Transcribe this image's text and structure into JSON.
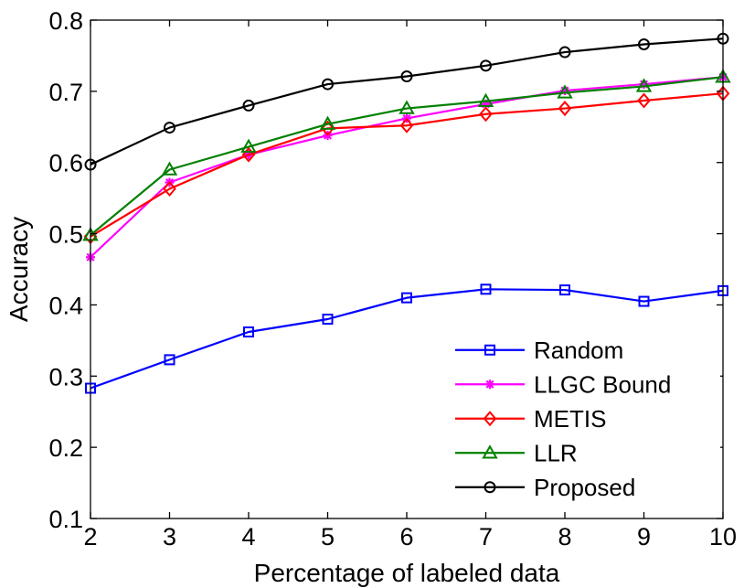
{
  "chart_data": {
    "type": "line",
    "xlabel": "Percentage of labeled data",
    "ylabel": "Accuracy",
    "xlim": [
      2,
      10
    ],
    "ylim": [
      0.1,
      0.8
    ],
    "xticks": [
      "2",
      "3",
      "4",
      "5",
      "6",
      "7",
      "8",
      "9",
      "10"
    ],
    "yticks": [
      "0.1",
      "0.2",
      "0.3",
      "0.4",
      "0.5",
      "0.6",
      "0.7",
      "0.8"
    ],
    "grid": false,
    "legend_position": "bottom-right",
    "x": [
      2,
      3,
      4,
      5,
      6,
      7,
      8,
      9,
      10
    ],
    "series": [
      {
        "name": "Random",
        "color": "#0000ff",
        "marker": "square",
        "values": [
          0.283,
          0.323,
          0.362,
          0.38,
          0.41,
          0.422,
          0.421,
          0.405,
          0.42
        ]
      },
      {
        "name": "LLGC Bound",
        "color": "#ff00ff",
        "marker": "asterisk",
        "values": [
          0.467,
          0.572,
          0.611,
          0.638,
          0.662,
          0.682,
          0.701,
          0.71,
          0.72
        ]
      },
      {
        "name": "METIS",
        "color": "#ff0000",
        "marker": "diamond",
        "values": [
          0.496,
          0.563,
          0.611,
          0.648,
          0.652,
          0.668,
          0.676,
          0.687,
          0.697
        ]
      },
      {
        "name": "LLR",
        "color": "#008000",
        "marker": "triangle",
        "values": [
          0.498,
          0.59,
          0.622,
          0.654,
          0.676,
          0.686,
          0.698,
          0.707,
          0.72
        ]
      },
      {
        "name": "Proposed",
        "color": "#000000",
        "marker": "circle",
        "values": [
          0.597,
          0.649,
          0.68,
          0.71,
          0.721,
          0.736,
          0.755,
          0.766,
          0.774
        ]
      }
    ]
  }
}
